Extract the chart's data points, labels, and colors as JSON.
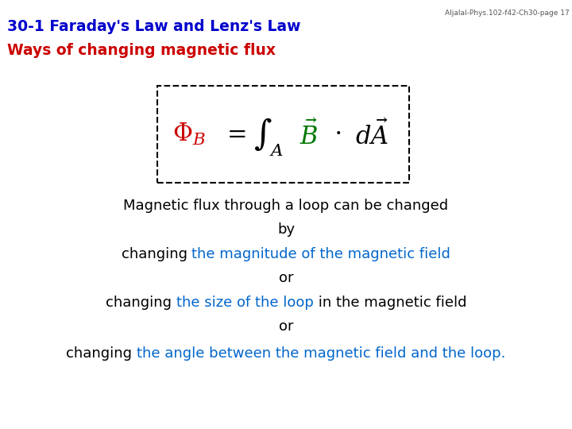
{
  "title_line1": "30-1 Faraday's Law and Lenz's Law",
  "title_line2": "Ways of changing magnetic flux",
  "title_color1": "#0000CC",
  "title_color2": "#CC0000",
  "watermark": "Aljalal-Phys.102-f42-Ch30-page 17",
  "watermark_color": "#555555",
  "phi_color": "#CC0000",
  "B_color": "#007700",
  "dA_color": "#000000",
  "bg_color": "#FFFFFF",
  "box_color": "#000000",
  "fontsize_title": 13.5,
  "fontsize_watermark": 6.5,
  "fontsize_body": 13,
  "fontsize_formula": 22,
  "body_lines": [
    [
      {
        "text": "Magnetic flux through a loop can be changed",
        "color": "#000000"
      }
    ],
    [
      {
        "text": "by",
        "color": "#000000"
      }
    ],
    [
      {
        "text": "changing ",
        "color": "#000000"
      },
      {
        "text": "the magnitude of the magnetic field",
        "color": "#0066CC"
      }
    ],
    [
      {
        "text": "or",
        "color": "#000000"
      }
    ],
    [
      {
        "text": "changing ",
        "color": "#000000"
      },
      {
        "text": "the size of the loop",
        "color": "#0066CC"
      },
      {
        "text": " in the magnetic field",
        "color": "#000000"
      }
    ],
    [
      {
        "text": "or",
        "color": "#000000"
      }
    ],
    [
      {
        "text": "changing ",
        "color": "#000000"
      },
      {
        "text": "the angle between the magnetic field and the loop.",
        "color": "#0066CC"
      }
    ]
  ]
}
